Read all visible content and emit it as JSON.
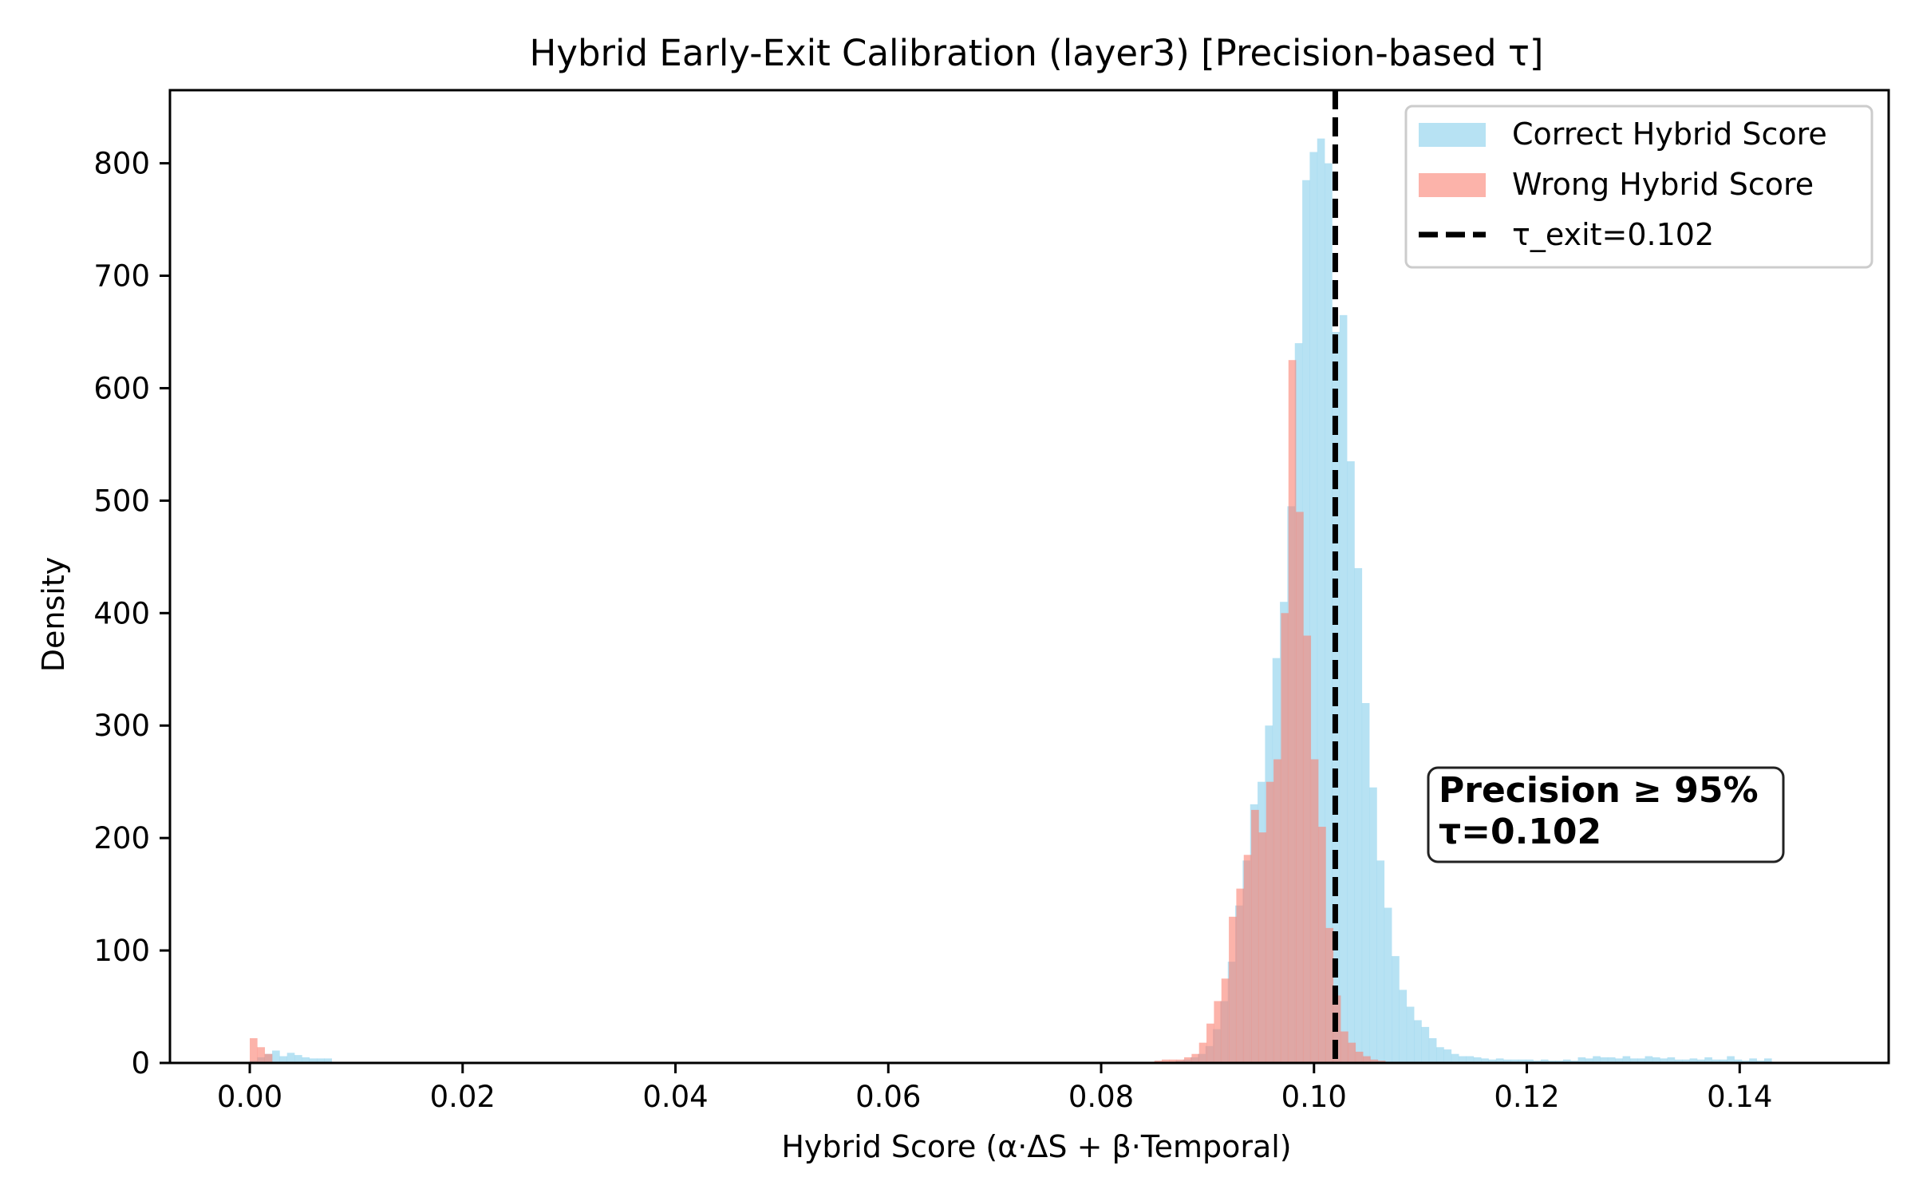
{
  "chart_data": {
    "type": "histogram",
    "title": "Hybrid Early-Exit Calibration (layer3) [Precision-based τ]",
    "xlabel": "Hybrid Score (α·ΔS + β·Temporal)",
    "ylabel": "Density",
    "xlim": [
      -0.0075,
      0.154
    ],
    "ylim": [
      0,
      865
    ],
    "x_ticks": [
      {
        "value": 0.0,
        "label": "0.00"
      },
      {
        "value": 0.02,
        "label": "0.02"
      },
      {
        "value": 0.04,
        "label": "0.04"
      },
      {
        "value": 0.06,
        "label": "0.06"
      },
      {
        "value": 0.08,
        "label": "0.08"
      },
      {
        "value": 0.1,
        "label": "0.10"
      },
      {
        "value": 0.12,
        "label": "0.12"
      },
      {
        "value": 0.14,
        "label": "0.14"
      }
    ],
    "y_ticks": [
      {
        "value": 0,
        "label": "0"
      },
      {
        "value": 100,
        "label": "100"
      },
      {
        "value": 200,
        "label": "200"
      },
      {
        "value": 300,
        "label": "300"
      },
      {
        "value": 400,
        "label": "400"
      },
      {
        "value": 500,
        "label": "500"
      },
      {
        "value": 600,
        "label": "600"
      },
      {
        "value": 700,
        "label": "700"
      },
      {
        "value": 800,
        "label": "800"
      }
    ],
    "grid": false,
    "legend_position": "top-right",
    "series": [
      {
        "name": "Correct Hybrid Score",
        "color": "#87ceeb",
        "opacity": 0.6,
        "bins": [
          [
            0.0,
            0.0007,
            2
          ],
          [
            0.0007,
            0.0014,
            5
          ],
          [
            0.0014,
            0.0021,
            8
          ],
          [
            0.0021,
            0.0028,
            11
          ],
          [
            0.0028,
            0.0035,
            6
          ],
          [
            0.0035,
            0.0042,
            9
          ],
          [
            0.0042,
            0.0049,
            7
          ],
          [
            0.0049,
            0.0056,
            5
          ],
          [
            0.0056,
            0.0063,
            4
          ],
          [
            0.0063,
            0.007,
            4
          ],
          [
            0.007,
            0.0077,
            4
          ],
          [
            0.087,
            0.0877,
            2
          ],
          [
            0.0877,
            0.0884,
            3
          ],
          [
            0.0884,
            0.0891,
            5
          ],
          [
            0.0891,
            0.0898,
            8
          ],
          [
            0.0898,
            0.0905,
            15
          ],
          [
            0.0905,
            0.0912,
            30
          ],
          [
            0.0912,
            0.0919,
            55
          ],
          [
            0.0919,
            0.0926,
            90
          ],
          [
            0.0926,
            0.0933,
            140
          ],
          [
            0.0933,
            0.094,
            180
          ],
          [
            0.094,
            0.0947,
            230
          ],
          [
            0.0947,
            0.0954,
            250
          ],
          [
            0.0954,
            0.0961,
            300
          ],
          [
            0.0961,
            0.0968,
            360
          ],
          [
            0.0968,
            0.0975,
            410
          ],
          [
            0.0975,
            0.0982,
            495
          ],
          [
            0.0982,
            0.0989,
            640
          ],
          [
            0.0989,
            0.0996,
            785
          ],
          [
            0.0996,
            0.1003,
            810
          ],
          [
            0.1003,
            0.101,
            822
          ],
          [
            0.101,
            0.1017,
            800
          ],
          [
            0.1017,
            0.1024,
            650
          ],
          [
            0.1024,
            0.1031,
            665
          ],
          [
            0.1031,
            0.1038,
            535
          ],
          [
            0.1038,
            0.1045,
            440
          ],
          [
            0.1045,
            0.1052,
            320
          ],
          [
            0.1052,
            0.1059,
            245
          ],
          [
            0.1059,
            0.1066,
            180
          ],
          [
            0.1066,
            0.1073,
            138
          ],
          [
            0.1073,
            0.108,
            95
          ],
          [
            0.108,
            0.1087,
            65
          ],
          [
            0.1087,
            0.1094,
            50
          ],
          [
            0.1094,
            0.1101,
            38
          ],
          [
            0.1101,
            0.1108,
            32
          ],
          [
            0.1108,
            0.1115,
            22
          ],
          [
            0.1115,
            0.1122,
            14
          ],
          [
            0.1122,
            0.1129,
            12
          ],
          [
            0.1129,
            0.1136,
            8
          ],
          [
            0.1136,
            0.1143,
            6
          ],
          [
            0.1143,
            0.115,
            6
          ],
          [
            0.115,
            0.1157,
            5
          ],
          [
            0.1157,
            0.1164,
            4
          ],
          [
            0.1164,
            0.1171,
            3
          ],
          [
            0.1171,
            0.1178,
            4
          ],
          [
            0.1178,
            0.1185,
            3
          ],
          [
            0.1185,
            0.1192,
            3
          ],
          [
            0.1192,
            0.1199,
            3
          ],
          [
            0.1199,
            0.1206,
            3
          ],
          [
            0.1206,
            0.1213,
            2
          ],
          [
            0.1213,
            0.122,
            3
          ],
          [
            0.122,
            0.1227,
            2
          ],
          [
            0.1227,
            0.1234,
            2
          ],
          [
            0.1234,
            0.1241,
            3
          ],
          [
            0.1241,
            0.1248,
            2
          ],
          [
            0.1248,
            0.1255,
            5
          ],
          [
            0.1255,
            0.1262,
            4
          ],
          [
            0.1262,
            0.1269,
            6
          ],
          [
            0.1269,
            0.1276,
            5
          ],
          [
            0.1276,
            0.1283,
            5
          ],
          [
            0.1283,
            0.129,
            4
          ],
          [
            0.129,
            0.1297,
            6
          ],
          [
            0.1297,
            0.1304,
            4
          ],
          [
            0.1304,
            0.1311,
            4
          ],
          [
            0.1311,
            0.1318,
            6
          ],
          [
            0.1318,
            0.1325,
            5
          ],
          [
            0.1325,
            0.1332,
            4
          ],
          [
            0.1332,
            0.1339,
            5
          ],
          [
            0.1339,
            0.1346,
            3
          ],
          [
            0.1346,
            0.1353,
            3
          ],
          [
            0.1353,
            0.136,
            4
          ],
          [
            0.136,
            0.1367,
            3
          ],
          [
            0.1367,
            0.1374,
            5
          ],
          [
            0.1374,
            0.1381,
            3
          ],
          [
            0.1381,
            0.1388,
            3
          ],
          [
            0.1388,
            0.1395,
            6
          ],
          [
            0.1395,
            0.1402,
            3
          ],
          [
            0.1402,
            0.1409,
            2
          ],
          [
            0.1409,
            0.1416,
            4
          ],
          [
            0.1416,
            0.1423,
            2
          ],
          [
            0.1423,
            0.143,
            4
          ]
        ]
      },
      {
        "name": "Wrong Hybrid Score",
        "color": "#fa8072",
        "opacity": 0.6,
        "bins": [
          [
            0.0,
            0.0007,
            22
          ],
          [
            0.0007,
            0.0014,
            14
          ],
          [
            0.0014,
            0.0021,
            8
          ],
          [
            0.085,
            0.0857,
            2
          ],
          [
            0.0857,
            0.0864,
            3
          ],
          [
            0.0864,
            0.0871,
            3
          ],
          [
            0.0871,
            0.0878,
            3
          ],
          [
            0.0878,
            0.0885,
            5
          ],
          [
            0.0885,
            0.0892,
            8
          ],
          [
            0.0892,
            0.0899,
            18
          ],
          [
            0.0899,
            0.0906,
            35
          ],
          [
            0.0906,
            0.0913,
            55
          ],
          [
            0.0913,
            0.092,
            75
          ],
          [
            0.092,
            0.0927,
            130
          ],
          [
            0.0927,
            0.0934,
            155
          ],
          [
            0.0934,
            0.0941,
            185
          ],
          [
            0.0941,
            0.0948,
            225
          ],
          [
            0.0948,
            0.0955,
            205
          ],
          [
            0.0955,
            0.0962,
            250
          ],
          [
            0.0962,
            0.0969,
            270
          ],
          [
            0.0969,
            0.0976,
            400
          ],
          [
            0.0976,
            0.0983,
            625
          ],
          [
            0.0983,
            0.099,
            490
          ],
          [
            0.099,
            0.0997,
            380
          ],
          [
            0.0997,
            0.1004,
            270
          ],
          [
            0.1004,
            0.1011,
            210
          ],
          [
            0.1011,
            0.1018,
            120
          ],
          [
            0.1018,
            0.1025,
            60
          ],
          [
            0.1025,
            0.1032,
            28
          ],
          [
            0.1032,
            0.1039,
            18
          ],
          [
            0.1039,
            0.1046,
            10
          ],
          [
            0.1046,
            0.1053,
            6
          ],
          [
            0.1053,
            0.106,
            3
          ],
          [
            0.106,
            0.1067,
            2
          ],
          [
            0.1067,
            0.1074,
            1
          ]
        ]
      }
    ],
    "threshold": {
      "value": 0.102,
      "label": "τ_exit=0.102",
      "color": "#000000",
      "style": "dashed"
    },
    "annotation": {
      "lines": [
        "Precision ≥ 95%",
        "τ=0.102"
      ],
      "x": 0.112,
      "y": 205
    }
  }
}
